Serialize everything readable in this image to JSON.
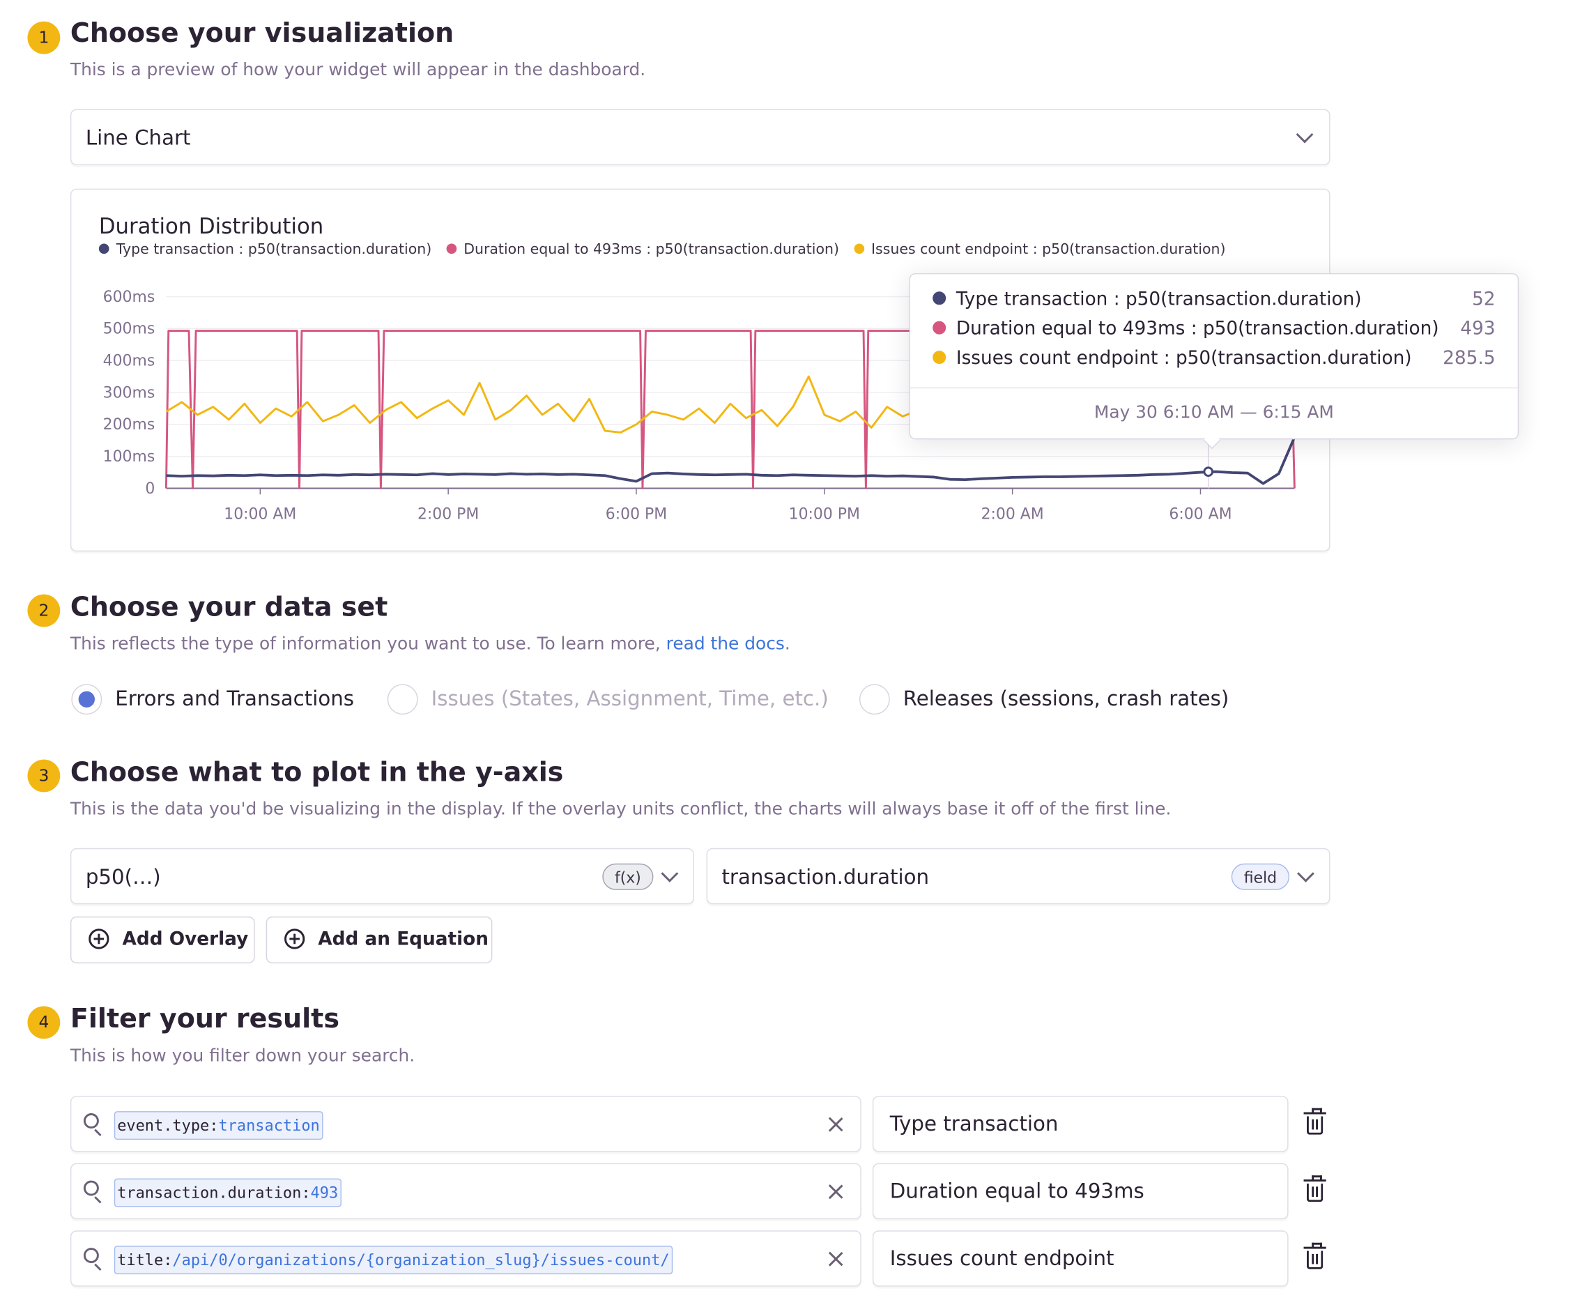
{
  "sections": [
    {
      "number": "1",
      "title": "Choose your visualization",
      "subtitle": "This is a preview of how your widget will appear in the dashboard."
    },
    {
      "number": "2",
      "title": "Choose your data set",
      "subtitle": "This reflects the type of information you want to use. To learn more, ",
      "link": "read the docs",
      "subtitle_end": "."
    },
    {
      "number": "3",
      "title": "Choose what to plot in the y-axis",
      "subtitle": "This is the data you'd be visualizing in the display. If the overlay units conflict, the charts will always base it off of the first line."
    },
    {
      "number": "4",
      "title": "Filter your results",
      "subtitle": "This is how you filter down your search."
    }
  ],
  "visualization_select": {
    "value": "Line Chart"
  },
  "dataset_options": [
    {
      "label": "Errors and Transactions",
      "selected": true,
      "disabled": false
    },
    {
      "label": "Issues (States, Assignment, Time, etc.)",
      "selected": false,
      "disabled": true
    },
    {
      "label": "Releases (sessions, crash rates)",
      "selected": false,
      "disabled": false
    }
  ],
  "yaxis": {
    "function": {
      "value": "p50(…)",
      "badge": "f(x)"
    },
    "field": {
      "value": "transaction.duration",
      "badge": "field"
    },
    "add_overlay": "Add Overlay",
    "add_equation": "Add an Equation"
  },
  "filters": [
    {
      "key": "event.type:",
      "value": "transaction",
      "alias": "Type transaction"
    },
    {
      "key": "transaction.duration:",
      "value": "493",
      "alias": "Duration equal to 493ms"
    },
    {
      "key": "title:",
      "value": "/api/0/organizations/{organization_slug}/issues-count/",
      "alias": "Issues count endpoint"
    }
  ],
  "colors": {
    "accent": "#f2b712",
    "link": "#3d74db",
    "radio": "#5872d6"
  },
  "chart_data": {
    "type": "line",
    "title": "Duration Distribution",
    "ylim": [
      0,
      600
    ],
    "y_ticks": [
      "0",
      "100ms",
      "200ms",
      "300ms",
      "400ms",
      "500ms",
      "600ms"
    ],
    "x_ticks": [
      "10:00 AM",
      "2:00 PM",
      "6:00 PM",
      "10:00 PM",
      "2:00 AM",
      "6:00 AM"
    ],
    "xlim": [
      "08:00",
      "08:00"
    ],
    "grid": true,
    "legend_position": "top-left",
    "x": [
      "08:00",
      "08:20",
      "08:40",
      "09:00",
      "09:20",
      "09:40",
      "10:00",
      "10:20",
      "10:40",
      "11:00",
      "11:20",
      "11:40",
      "12:00",
      "12:20",
      "12:40",
      "13:00",
      "13:20",
      "13:40",
      "14:00",
      "14:20",
      "14:40",
      "15:00",
      "15:20",
      "15:40",
      "16:00",
      "16:20",
      "16:40",
      "17:00",
      "17:20",
      "17:40",
      "18:00",
      "18:20",
      "18:40",
      "19:00",
      "19:20",
      "19:40",
      "20:00",
      "20:20",
      "20:40",
      "21:00",
      "21:20",
      "21:40",
      "22:00",
      "22:20",
      "22:40",
      "23:00",
      "23:20",
      "23:40",
      "00:00",
      "00:20",
      "00:40",
      "01:00",
      "01:20",
      "01:40",
      "02:00",
      "02:20",
      "02:40",
      "03:00",
      "03:20",
      "03:40",
      "04:00",
      "04:20",
      "04:40",
      "05:00",
      "05:20",
      "05:40",
      "06:00",
      "06:20",
      "06:40",
      "07:00",
      "07:20",
      "07:40",
      "08:00"
    ],
    "series": [
      {
        "name": "Type transaction : p50(transaction.duration)",
        "color": "#444674",
        "values": [
          40,
          38,
          40,
          39,
          41,
          40,
          42,
          40,
          41,
          40,
          42,
          41,
          43,
          42,
          44,
          43,
          42,
          46,
          43,
          45,
          44,
          43,
          46,
          44,
          45,
          43,
          44,
          42,
          40,
          30,
          22,
          46,
          48,
          45,
          43,
          42,
          43,
          44,
          41,
          40,
          42,
          41,
          40,
          39,
          38,
          40,
          38,
          39,
          37,
          35,
          28,
          27,
          30,
          32,
          34,
          35,
          36,
          36,
          37,
          38,
          39,
          40,
          41,
          43,
          44,
          47,
          50,
          52,
          49,
          48,
          15,
          46,
          160
        ]
      },
      {
        "name": "Duration equal to 493ms : p50(transaction.duration)",
        "color": "#d6567f",
        "points": [
          [
            "08:00",
            0
          ],
          [
            "08:03",
            493
          ],
          [
            "08:29",
            493
          ],
          [
            "08:34",
            0
          ],
          [
            "08:38",
            493
          ],
          [
            "10:47",
            493
          ],
          [
            "10:50",
            0
          ],
          [
            "10:53",
            493
          ],
          [
            "12:31",
            493
          ],
          [
            "12:34",
            0
          ],
          [
            "12:38",
            493
          ],
          [
            "18:05",
            493
          ],
          [
            "18:08",
            0
          ],
          [
            "18:12",
            493
          ],
          [
            "20:26",
            493
          ],
          [
            "20:29",
            0
          ],
          [
            "20:32",
            493
          ],
          [
            "22:50",
            493
          ],
          [
            "22:53",
            0
          ],
          [
            "22:56",
            493
          ],
          [
            "07:55",
            493
          ],
          [
            "08:00",
            0
          ]
        ]
      },
      {
        "name": "Issues count endpoint : p50(transaction.duration)",
        "color": "#f2b712",
        "values": [
          240,
          270,
          230,
          255,
          215,
          265,
          205,
          250,
          225,
          270,
          210,
          230,
          260,
          205,
          245,
          270,
          220,
          250,
          275,
          230,
          330,
          215,
          245,
          290,
          230,
          265,
          210,
          280,
          180,
          175,
          200,
          240,
          230,
          215,
          250,
          205,
          265,
          220,
          245,
          195,
          255,
          350,
          230,
          210,
          240,
          190,
          255,
          225,
          245,
          270,
          240,
          220,
          250,
          230,
          260,
          240,
          250,
          245,
          260,
          230,
          255,
          240,
          250,
          245,
          260,
          250,
          270,
          285,
          260,
          250,
          240,
          230,
          235
        ]
      }
    ],
    "tooltip": {
      "rows": [
        {
          "label": "Type transaction : p50(transaction.duration)",
          "value": "52"
        },
        {
          "label": "Duration equal to 493ms : p50(transaction.duration)",
          "value": "493"
        },
        {
          "label": "Issues count endpoint : p50(transaction.duration)",
          "value": "285.5"
        }
      ],
      "time_range": "May 30 6:10 AM — 6:15 AM"
    }
  }
}
